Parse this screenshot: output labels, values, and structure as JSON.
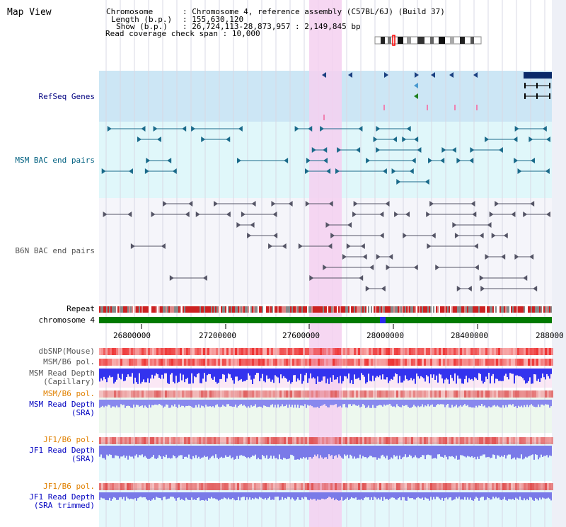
{
  "title": "Map View",
  "info": {
    "chromosome_label": "Chromosome",
    "chromosome_value": "Chromosome 4, reference assembly (C57BL/6J) (Build 37)",
    "length_label": "Length (b.p.)",
    "length_value": "155,630,120",
    "show_label": "Show (b.p.)",
    "show_value": "26,724,113-28,873,957 : 2,149,845 bp",
    "coverage_label": "Read coverage check span",
    "coverage_value": "10,000"
  },
  "tracks": {
    "refseq": "RefSeq Genes",
    "msm_bac": "MSM BAC end pairs",
    "b6n_bac": "B6N BAC end pairs",
    "repeat": "Repeat",
    "chromosome": "chromosome 4",
    "dbsnp": "dbSNP(Mouse)",
    "msm_b6_pol": "MSM/B6 pol.",
    "msm_depth_cap_1": "MSM Read Depth",
    "msm_depth_cap_2": "(Capillary)",
    "msm_b6_pol_2": "MSM/B6 pol.",
    "msm_depth_sra_1": "MSM Read Depth",
    "msm_depth_sra_2": "(SRA)",
    "jf1_b6_pol": "JF1/B6 pol.",
    "jf1_depth_sra_1": "JF1 Read Depth",
    "jf1_depth_sra_2": "(SRA)",
    "jf1_b6_pol_2": "JF1/B6 pol.",
    "jf1_depth_trim_1": "JF1 Read Depth",
    "jf1_depth_trim_2": "(SRA trimmed)"
  },
  "axis": {
    "ticks": [
      "26800000",
      "27200000",
      "27600000",
      "28000000",
      "28400000",
      "288000"
    ]
  },
  "colors": {
    "refseq_bg": "#cce6f5",
    "msm_bg": "#e0f7fa",
    "b6n_bg": "#f5f5fa",
    "highlight": "#f5d0f0",
    "chromosome": "#007a00",
    "depth_blue": "#3333ee",
    "depth_light": "#8888ee",
    "pol_red": "#ee3333"
  }
}
